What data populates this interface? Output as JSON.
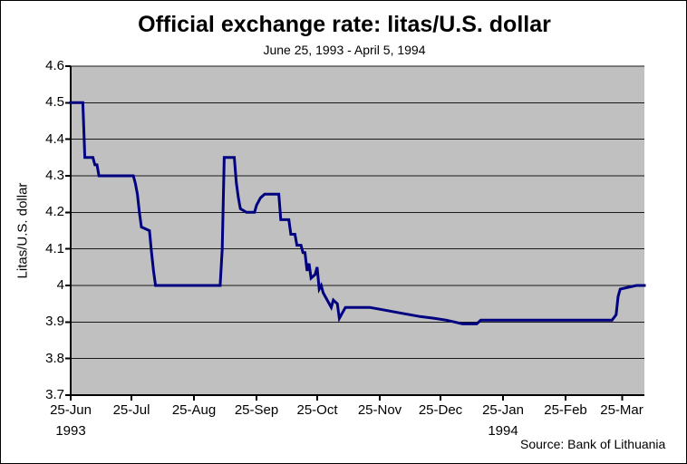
{
  "title": "Official exchange rate: litas/U.S. dollar",
  "subtitle": "June 25, 1993 - April 5, 1994",
  "source": "Source: Bank of Lithuania",
  "colors": {
    "background": "#ffffff",
    "plot_background": "#c0c0c0",
    "gridline": "#1a1a1a",
    "axis": "#000000",
    "line": "#000080",
    "text": "#000000"
  },
  "chart_data": {
    "type": "line",
    "title": "Official exchange rate: litas/U.S. dollar",
    "subtitle": "June 25, 1993 - April 5, 1994",
    "xlabel": "",
    "ylabel": "Litas/U.S. dollar",
    "ylim": [
      3.7,
      4.6
    ],
    "y_ticks": [
      {
        "label": "4.6",
        "value": 4.6
      },
      {
        "label": "4.5",
        "value": 4.5
      },
      {
        "label": "4.4",
        "value": 4.4
      },
      {
        "label": "4.3",
        "value": 4.3
      },
      {
        "label": "4.2",
        "value": 4.2
      },
      {
        "label": "4.1",
        "value": 4.1
      },
      {
        "label": "4",
        "value": 4.0
      },
      {
        "label": "3.9",
        "value": 3.9
      },
      {
        "label": "3.8",
        "value": 3.8
      },
      {
        "label": "3.7",
        "value": 3.7
      }
    ],
    "x_range": [
      "1993-06-25",
      "1994-04-05"
    ],
    "x_ticks": [
      {
        "label": "25-Jun",
        "date": "1993-06-25",
        "year_label": "1993"
      },
      {
        "label": "25-Jul",
        "date": "1993-07-25"
      },
      {
        "label": "25-Aug",
        "date": "1993-08-25"
      },
      {
        "label": "25-Sep",
        "date": "1993-09-25"
      },
      {
        "label": "25-Oct",
        "date": "1993-10-25"
      },
      {
        "label": "25-Nov",
        "date": "1993-11-25"
      },
      {
        "label": "25-Dec",
        "date": "1993-12-25"
      },
      {
        "label": "25-Jan",
        "date": "1994-01-25",
        "year_label": "1994"
      },
      {
        "label": "25-Feb",
        "date": "1994-02-25"
      },
      {
        "label": "25-Mar",
        "date": "1994-03-25"
      }
    ],
    "grid": "horizontal",
    "legend": "none",
    "series": [
      {
        "name": "Official exchange rate litas/U.S. dollar",
        "color": "#000080",
        "points": [
          [
            "1993-06-25",
            4.5
          ],
          [
            "1993-07-01",
            4.5
          ],
          [
            "1993-07-02",
            4.35
          ],
          [
            "1993-07-06",
            4.35
          ],
          [
            "1993-07-07",
            4.33
          ],
          [
            "1993-07-08",
            4.33
          ],
          [
            "1993-07-09",
            4.3
          ],
          [
            "1993-07-26",
            4.3
          ],
          [
            "1993-07-27",
            4.28
          ],
          [
            "1993-07-28",
            4.25
          ],
          [
            "1993-07-29",
            4.2
          ],
          [
            "1993-07-30",
            4.16
          ],
          [
            "1993-08-03",
            4.15
          ],
          [
            "1993-08-04",
            4.09
          ],
          [
            "1993-08-05",
            4.04
          ],
          [
            "1993-08-06",
            4.0
          ],
          [
            "1993-09-07",
            4.0
          ],
          [
            "1993-09-08",
            4.1
          ],
          [
            "1993-09-09",
            4.35
          ],
          [
            "1993-09-14",
            4.35
          ],
          [
            "1993-09-15",
            4.28
          ],
          [
            "1993-09-16",
            4.24
          ],
          [
            "1993-09-17",
            4.21
          ],
          [
            "1993-09-20",
            4.2
          ],
          [
            "1993-09-24",
            4.2
          ],
          [
            "1993-09-25",
            4.22
          ],
          [
            "1993-09-27",
            4.24
          ],
          [
            "1993-09-29",
            4.25
          ],
          [
            "1993-10-06",
            4.25
          ],
          [
            "1993-10-07",
            4.18
          ],
          [
            "1993-10-11",
            4.18
          ],
          [
            "1993-10-12",
            4.14
          ],
          [
            "1993-10-14",
            4.14
          ],
          [
            "1993-10-15",
            4.11
          ],
          [
            "1993-10-17",
            4.11
          ],
          [
            "1993-10-18",
            4.09
          ],
          [
            "1993-10-19",
            4.09
          ],
          [
            "1993-10-20",
            4.04
          ],
          [
            "1993-10-21",
            4.06
          ],
          [
            "1993-10-22",
            4.02
          ],
          [
            "1993-10-24",
            4.03
          ],
          [
            "1993-10-25",
            4.05
          ],
          [
            "1993-10-26",
            3.99
          ],
          [
            "1993-10-27",
            4.0
          ],
          [
            "1993-10-28",
            3.98
          ],
          [
            "1993-10-29",
            3.97
          ],
          [
            "1993-11-01",
            3.94
          ],
          [
            "1993-11-02",
            3.96
          ],
          [
            "1993-11-04",
            3.95
          ],
          [
            "1993-11-05",
            3.91
          ],
          [
            "1993-11-08",
            3.94
          ],
          [
            "1993-11-20",
            3.94
          ],
          [
            "1993-11-25",
            3.935
          ],
          [
            "1993-12-05",
            3.925
          ],
          [
            "1993-12-15",
            3.915
          ],
          [
            "1993-12-22",
            3.91
          ],
          [
            "1993-12-28",
            3.905
          ],
          [
            "1994-01-01",
            3.9
          ],
          [
            "1994-01-05",
            3.895
          ],
          [
            "1994-01-12",
            3.895
          ],
          [
            "1994-01-14",
            3.905
          ],
          [
            "1994-03-20",
            3.905
          ],
          [
            "1994-03-22",
            3.92
          ],
          [
            "1994-03-23",
            3.97
          ],
          [
            "1994-03-24",
            3.99
          ],
          [
            "1994-03-28",
            3.995
          ],
          [
            "1994-04-01",
            4.0
          ],
          [
            "1994-04-05",
            4.0
          ]
        ]
      }
    ]
  }
}
